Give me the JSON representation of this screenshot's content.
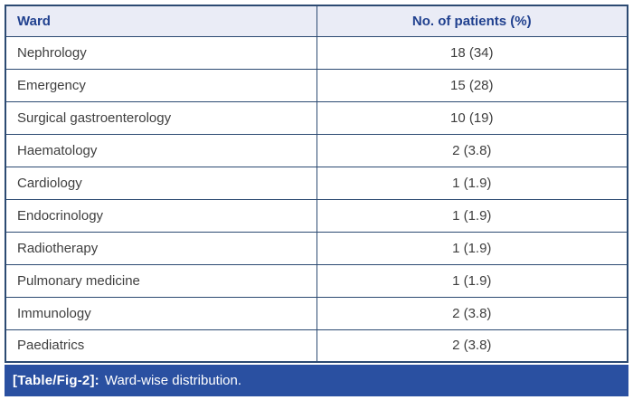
{
  "table": {
    "header": {
      "ward_label": "Ward",
      "patients_label": "No. of patients (%)"
    },
    "rows": [
      {
        "ward": "Nephrology",
        "patients": "18 (34)"
      },
      {
        "ward": "Emergency",
        "patients": "15 (28)"
      },
      {
        "ward": "Surgical gastroenterology",
        "patients": "10 (19)"
      },
      {
        "ward": "Haematology",
        "patients": "2 (3.8)"
      },
      {
        "ward": "Cardiology",
        "patients": "1 (1.9)"
      },
      {
        "ward": "Endocrinology",
        "patients": "1 (1.9)"
      },
      {
        "ward": "Radiotherapy",
        "patients": "1 (1.9)"
      },
      {
        "ward": "Pulmonary medicine",
        "patients": "1 (1.9)"
      },
      {
        "ward": "Immunology",
        "patients": "2 (3.8)"
      },
      {
        "ward": "Paediatrics",
        "patients": "2 (3.8)"
      }
    ]
  },
  "caption": {
    "tag": "[Table/Fig-2]:",
    "text": "Ward-wise distribution."
  },
  "colors": {
    "border": "#2c4a72",
    "header_bg": "#eaecf6",
    "header_text": "#21418f",
    "body_text": "#3f3f3f",
    "caption_bg": "#2a50a1",
    "caption_text": "#ffffff"
  },
  "chart_data": {
    "type": "table",
    "title": "[Table/Fig-2]: Ward-wise distribution.",
    "columns": [
      "Ward",
      "No. of patients (%)"
    ],
    "categories": [
      "Nephrology",
      "Emergency",
      "Surgical gastroenterology",
      "Haematology",
      "Cardiology",
      "Endocrinology",
      "Radiotherapy",
      "Pulmonary medicine",
      "Immunology",
      "Paediatrics"
    ],
    "values": [
      18,
      15,
      10,
      2,
      1,
      1,
      1,
      1,
      2,
      2
    ],
    "percentages": [
      34,
      28,
      19,
      3.8,
      1.9,
      1.9,
      1.9,
      1.9,
      3.8,
      3.8
    ]
  }
}
